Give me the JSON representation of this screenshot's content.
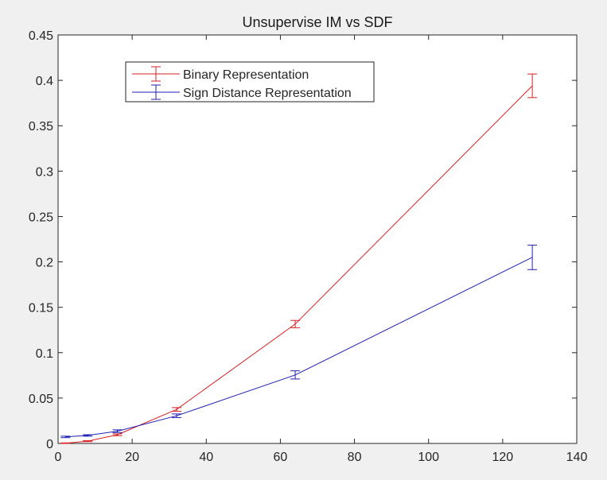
{
  "chart_data": {
    "type": "line",
    "title": "Unsupervise IM vs SDF",
    "xlabel": "",
    "ylabel": "",
    "xlim": [
      0,
      140
    ],
    "ylim": [
      0,
      0.45
    ],
    "xticks": [
      0,
      20,
      40,
      60,
      80,
      100,
      120,
      140
    ],
    "xtick_labels": [
      "0",
      "20",
      "40",
      "60",
      "80",
      "100",
      "120",
      "140"
    ],
    "yticks": [
      0,
      0.05,
      0.1,
      0.15,
      0.2,
      0.25,
      0.3,
      0.35,
      0.4,
      0.45
    ],
    "ytick_labels": [
      "0",
      "0.05",
      "0.1",
      "0.15",
      "0.2",
      "0.25",
      "0.3",
      "0.35",
      "0.4",
      "0.45"
    ],
    "grid": false,
    "legend_position": "top-left",
    "series": [
      {
        "name": "Binary Representation",
        "color": "#d62020",
        "x": [
          2,
          8,
          16,
          32,
          64,
          128
        ],
        "y": [
          0.0003,
          0.0025,
          0.0095,
          0.0375,
          0.1315,
          0.394
        ],
        "err": [
          0.0003,
          0.0005,
          0.001,
          0.002,
          0.004,
          0.013
        ]
      },
      {
        "name": "Sign Distance Representation",
        "color": "#2020b4",
        "x": [
          2,
          8,
          16,
          32,
          64,
          128
        ],
        "y": [
          0.0072,
          0.0088,
          0.0135,
          0.0305,
          0.0755,
          0.205
        ],
        "err": [
          0.0008,
          0.0008,
          0.0015,
          0.002,
          0.0045,
          0.0135
        ]
      }
    ]
  }
}
